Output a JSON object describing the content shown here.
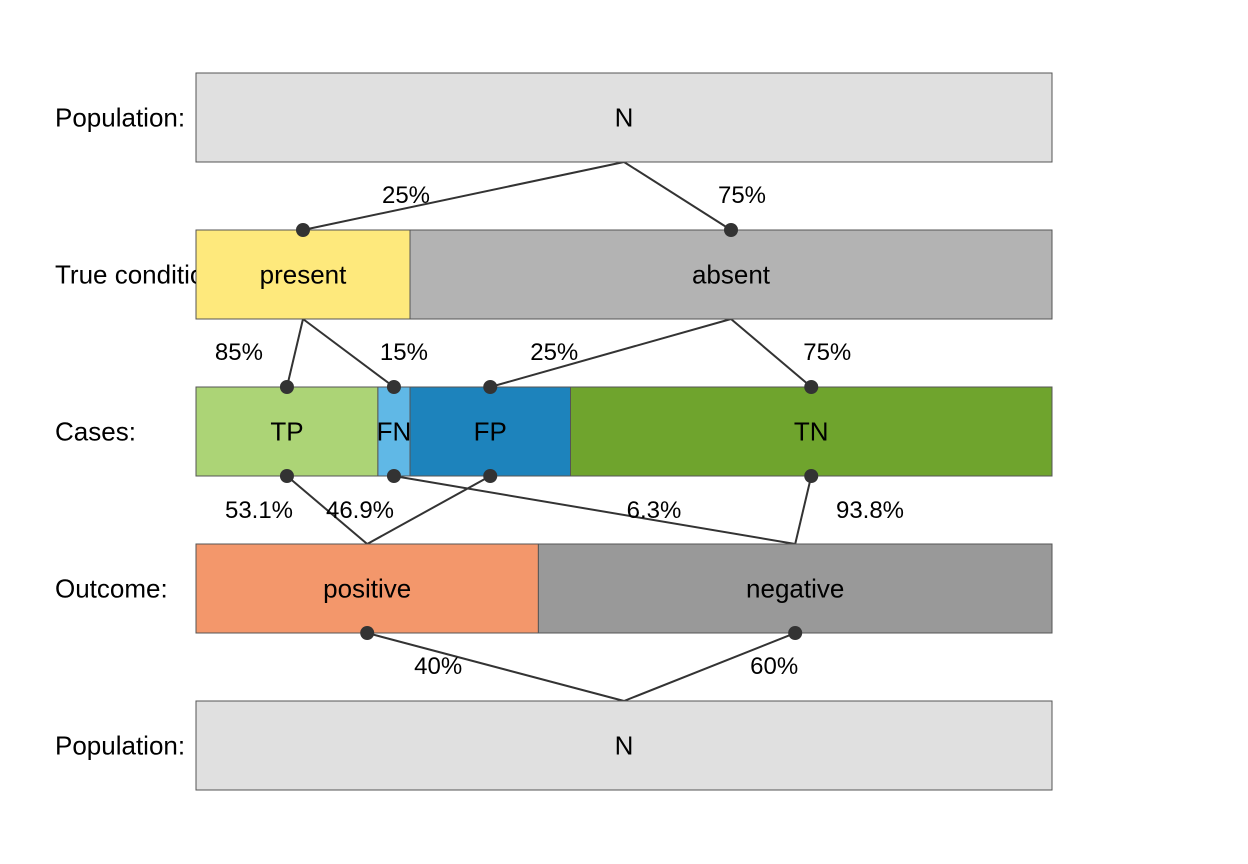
{
  "rows": {
    "population_top": {
      "label": "Population:"
    },
    "true_condition": {
      "label": "True condition:"
    },
    "cases": {
      "label": "Cases:"
    },
    "outcome": {
      "label": "Outcome:"
    },
    "population_bottom": {
      "label": "Population:"
    }
  },
  "segments": {
    "population_top": [
      {
        "id": "n-top",
        "label": "N",
        "share": 1.0,
        "color": "#e0e0e0"
      }
    ],
    "true_condition": [
      {
        "id": "present",
        "label": "present",
        "share": 0.25,
        "color": "#fee97c"
      },
      {
        "id": "absent",
        "label": "absent",
        "share": 0.75,
        "color": "#b3b3b3"
      }
    ],
    "cases": [
      {
        "id": "tp",
        "label": "TP",
        "share": 0.2125,
        "color": "#acd476"
      },
      {
        "id": "fn",
        "label": "FN",
        "share": 0.0375,
        "color": "#60b8e6"
      },
      {
        "id": "fp",
        "label": "FP",
        "share": 0.1875,
        "color": "#1d83bc"
      },
      {
        "id": "tn",
        "label": "TN",
        "share": 0.5625,
        "color": "#6fa42d"
      }
    ],
    "outcome": [
      {
        "id": "positive",
        "label": "positive",
        "share": 0.4,
        "color": "#f3976b"
      },
      {
        "id": "negative",
        "label": "negative",
        "share": 0.6,
        "color": "#999999"
      }
    ],
    "population_bottom": [
      {
        "id": "n-bottom",
        "label": "N",
        "share": 1.0,
        "color": "#e0e0e0"
      }
    ]
  },
  "links": {
    "prevalence": [
      {
        "from": "n-top",
        "to": "present",
        "label": "25%"
      },
      {
        "from": "n-top",
        "to": "absent",
        "label": "75%"
      }
    ],
    "condition_to_cases": [
      {
        "from": "present",
        "to": "tp",
        "label": "85%"
      },
      {
        "from": "present",
        "to": "fn",
        "label": "15%"
      },
      {
        "from": "absent",
        "to": "fp",
        "label": "25%"
      },
      {
        "from": "absent",
        "to": "tn",
        "label": "75%"
      }
    ],
    "cases_to_outcome": [
      {
        "from": "tp",
        "to": "positive",
        "label": "53.1%"
      },
      {
        "from": "fp",
        "to": "positive",
        "label": "46.9%"
      },
      {
        "from": "fn",
        "to": "negative",
        "label": "6.3%"
      },
      {
        "from": "tn",
        "to": "negative",
        "label": "93.8%"
      }
    ],
    "outcome_to_population": [
      {
        "from": "positive",
        "to": "n-bottom",
        "label": "40%"
      },
      {
        "from": "negative",
        "to": "n-bottom",
        "label": "60%"
      }
    ]
  }
}
